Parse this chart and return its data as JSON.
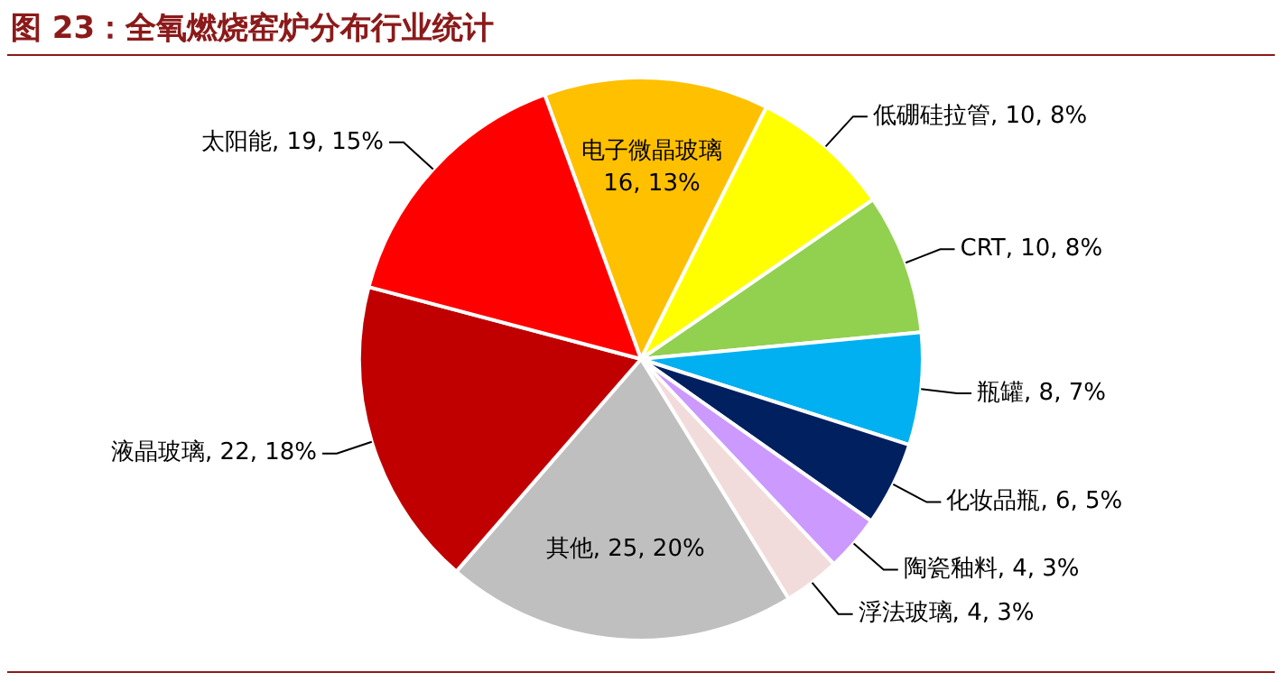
{
  "chart_data": {
    "type": "pie",
    "title": "图 23：全氧燃烧窑炉分布行业统计",
    "categories": [
      "电子微晶玻璃",
      "低硼硅拉管",
      "CRT",
      "瓶罐",
      "化妆品瓶",
      "陶瓷釉料",
      "浮法玻璃",
      "其他",
      "液晶玻璃",
      "太阳能"
    ],
    "values": [
      16,
      10,
      10,
      8,
      6,
      4,
      4,
      25,
      22,
      19
    ],
    "value_labels": [
      "16, 13%",
      "10, 8%",
      "10, 8%",
      "8, 7%",
      "6, 5%",
      "4, 3%",
      "4, 3%",
      "25, 20%",
      "22, 18%",
      "19, 15%"
    ],
    "colors": [
      "#ffc000",
      "#ffff00",
      "#92d050",
      "#00b0f0",
      "#002060",
      "#cc99ff",
      "#f2dcdb",
      "#bfbfbf",
      "#c00000",
      "#ff0000"
    ],
    "legend": false
  }
}
